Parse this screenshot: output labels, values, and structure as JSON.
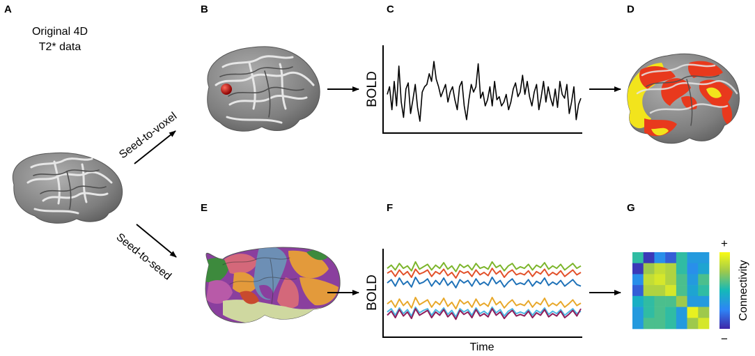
{
  "panels": {
    "A": {
      "letter": "A",
      "title_line1": "Original 4D",
      "title_line2": "T2* data"
    },
    "B": {
      "letter": "B"
    },
    "C": {
      "letter": "C",
      "ylabel": "BOLD"
    },
    "D": {
      "letter": "D"
    },
    "E": {
      "letter": "E"
    },
    "F": {
      "letter": "F",
      "ylabel": "BOLD",
      "xlabel": "Time"
    },
    "G": {
      "letter": "G",
      "colorbar_label": "Connectivity",
      "plus": "+",
      "minus": "−"
    }
  },
  "paths": {
    "seed_to_voxel": "Seed-to-voxel",
    "seed_to_seed": "Seed-to-seed"
  },
  "colors": {
    "brain_gray": "#8c8c8c",
    "seed": "#b01010",
    "activation_red": "#e8391d",
    "activation_yellow": "#f2e41c",
    "series": [
      "#7cb52b",
      "#e2512a",
      "#1f72b8",
      "#e8a82a",
      "#4bb7e3",
      "#8e1d5b"
    ],
    "parcels": [
      "#8a3f9e",
      "#d4687a",
      "#6d8fb5",
      "#e39a3b",
      "#3d8a3d",
      "#b85aa8",
      "#cfd8a0",
      "#c84a2e"
    ]
  },
  "chart_data": [
    {
      "type": "line",
      "panel": "C",
      "ylabel": "BOLD",
      "series": [
        {
          "values": [
            0.45,
            0.55,
            0.25,
            0.62,
            0.3,
            0.82,
            0.35,
            0.15,
            0.52,
            0.6,
            0.2,
            0.38,
            0.58,
            0.28,
            0.1,
            0.48,
            0.55,
            0.58,
            0.72,
            0.62,
            0.88,
            0.65,
            0.55,
            0.42,
            0.5,
            0.58,
            0.35,
            0.48,
            0.55,
            0.38,
            0.25,
            0.55,
            0.62,
            0.3,
            0.12,
            0.38,
            0.58,
            0.48,
            0.55,
            0.85,
            0.4,
            0.48,
            0.3,
            0.38,
            0.55,
            0.3,
            0.62,
            0.38,
            0.42,
            0.3,
            0.35,
            0.45,
            0.25,
            0.35,
            0.52,
            0.6,
            0.42,
            0.48,
            0.7,
            0.45,
            0.62,
            0.42,
            0.3,
            0.48,
            0.58,
            0.25,
            0.42,
            0.62,
            0.35,
            0.55,
            0.4,
            0.3,
            0.52,
            0.28,
            0.62,
            0.45,
            0.4,
            0.58,
            0.2,
            0.35,
            0.55,
            0.12,
            0.32,
            0.4
          ]
        }
      ]
    },
    {
      "type": "line",
      "panel": "F",
      "ylabel": "BOLD",
      "xlabel": "Time",
      "series": [
        {
          "values": [
            0.8,
            0.84,
            0.78,
            0.86,
            0.8,
            0.83,
            0.77,
            0.88,
            0.79,
            0.82,
            0.85,
            0.78,
            0.84,
            0.8,
            0.87,
            0.79,
            0.83,
            0.76,
            0.85,
            0.81,
            0.84,
            0.78,
            0.86,
            0.8,
            0.82,
            0.79,
            0.88,
            0.81,
            0.84,
            0.77,
            0.83,
            0.86,
            0.79,
            0.82,
            0.8,
            0.85,
            0.78,
            0.84,
            0.81,
            0.87,
            0.79,
            0.83,
            0.8,
            0.85,
            0.78,
            0.82,
            0.86,
            0.8,
            0.83
          ]
        },
        {
          "values": [
            0.74,
            0.77,
            0.7,
            0.78,
            0.72,
            0.76,
            0.69,
            0.79,
            0.73,
            0.75,
            0.78,
            0.7,
            0.76,
            0.73,
            0.79,
            0.71,
            0.75,
            0.68,
            0.77,
            0.74,
            0.76,
            0.7,
            0.78,
            0.72,
            0.75,
            0.71,
            0.8,
            0.73,
            0.77,
            0.69,
            0.75,
            0.78,
            0.72,
            0.74,
            0.72,
            0.77,
            0.7,
            0.76,
            0.73,
            0.79,
            0.71,
            0.75,
            0.72,
            0.77,
            0.7,
            0.74,
            0.78,
            0.72,
            0.75
          ]
        },
        {
          "values": [
            0.62,
            0.66,
            0.58,
            0.68,
            0.6,
            0.64,
            0.57,
            0.69,
            0.61,
            0.63,
            0.67,
            0.58,
            0.65,
            0.6,
            0.68,
            0.59,
            0.64,
            0.56,
            0.66,
            0.62,
            0.65,
            0.58,
            0.67,
            0.6,
            0.63,
            0.59,
            0.69,
            0.61,
            0.65,
            0.57,
            0.63,
            0.67,
            0.6,
            0.62,
            0.6,
            0.66,
            0.58,
            0.64,
            0.61,
            0.68,
            0.59,
            0.63,
            0.6,
            0.65,
            0.58,
            0.62,
            0.66,
            0.6,
            0.58
          ]
        },
        {
          "values": [
            0.36,
            0.4,
            0.32,
            0.42,
            0.34,
            0.39,
            0.31,
            0.44,
            0.35,
            0.38,
            0.41,
            0.32,
            0.39,
            0.35,
            0.43,
            0.33,
            0.38,
            0.3,
            0.41,
            0.36,
            0.39,
            0.32,
            0.42,
            0.34,
            0.37,
            0.33,
            0.44,
            0.35,
            0.39,
            0.31,
            0.37,
            0.41,
            0.34,
            0.36,
            0.34,
            0.4,
            0.32,
            0.38,
            0.35,
            0.43,
            0.33,
            0.37,
            0.34,
            0.39,
            0.32,
            0.36,
            0.41,
            0.34,
            0.37
          ]
        },
        {
          "values": [
            0.26,
            0.3,
            0.22,
            0.31,
            0.24,
            0.29,
            0.21,
            0.32,
            0.25,
            0.28,
            0.3,
            0.22,
            0.29,
            0.25,
            0.31,
            0.23,
            0.28,
            0.2,
            0.3,
            0.26,
            0.29,
            0.22,
            0.31,
            0.24,
            0.27,
            0.23,
            0.32,
            0.25,
            0.29,
            0.21,
            0.27,
            0.3,
            0.24,
            0.26,
            0.24,
            0.29,
            0.22,
            0.28,
            0.25,
            0.31,
            0.23,
            0.27,
            0.24,
            0.29,
            0.22,
            0.26,
            0.3,
            0.24,
            0.27
          ]
        },
        {
          "values": [
            0.22,
            0.27,
            0.19,
            0.29,
            0.21,
            0.26,
            0.18,
            0.3,
            0.22,
            0.25,
            0.28,
            0.19,
            0.26,
            0.22,
            0.29,
            0.2,
            0.25,
            0.17,
            0.28,
            0.23,
            0.26,
            0.19,
            0.29,
            0.21,
            0.24,
            0.2,
            0.3,
            0.22,
            0.26,
            0.18,
            0.24,
            0.28,
            0.21,
            0.23,
            0.21,
            0.27,
            0.19,
            0.25,
            0.22,
            0.29,
            0.2,
            0.24,
            0.21,
            0.27,
            0.19,
            0.23,
            0.28,
            0.21,
            0.3
          ]
        }
      ]
    },
    {
      "type": "heatmap",
      "panel": "G",
      "colorbar_label": "Connectivity",
      "rows": 7,
      "cols": 7,
      "values": [
        [
          0.55,
          0.05,
          0.3,
          0.15,
          0.55,
          0.35,
          0.35
        ],
        [
          0.05,
          0.75,
          0.85,
          0.8,
          0.55,
          0.3,
          0.4
        ],
        [
          0.3,
          0.85,
          0.9,
          0.8,
          0.6,
          0.35,
          0.6
        ],
        [
          0.15,
          0.8,
          0.8,
          0.9,
          0.6,
          0.4,
          0.55
        ],
        [
          0.45,
          0.55,
          0.6,
          0.6,
          0.75,
          0.35,
          0.35
        ],
        [
          0.35,
          0.55,
          0.6,
          0.55,
          0.35,
          0.95,
          0.75
        ],
        [
          0.35,
          0.6,
          0.6,
          0.55,
          0.35,
          0.75,
          0.9
        ]
      ]
    }
  ]
}
